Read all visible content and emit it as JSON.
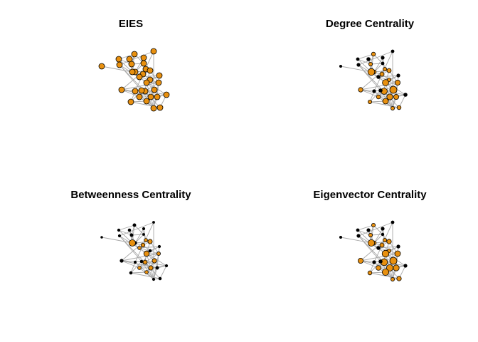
{
  "colors": {
    "node_fill": "#E8900F",
    "node_stroke": "#000000",
    "edge": "#A9A9A9",
    "title": "#000000"
  },
  "panels": [
    {
      "title": "EIES"
    },
    {
      "title": "Degree Centrality"
    },
    {
      "title": "Betweenness Centrality"
    },
    {
      "title": "Eigenvector Centrality"
    }
  ],
  "nodes": [
    {
      "id": 0,
      "node_size": {
        "eies": 1.0,
        "degree": 0.15,
        "betweenness": 0.1,
        "eigenvector": 0.15
      }
    },
    {
      "id": 1,
      "node_size": {
        "eies": 1.0,
        "degree": 0.25,
        "betweenness": 0.2,
        "eigenvector": 0.25
      }
    },
    {
      "id": 2,
      "node_size": {
        "eies": 1.0,
        "degree": 0.35,
        "betweenness": 0.25,
        "eigenvector": 0.3
      }
    },
    {
      "id": 3,
      "node_size": {
        "eies": 1.0,
        "degree": 0.45,
        "betweenness": 0.3,
        "eigenvector": 0.4
      }
    },
    {
      "id": 4,
      "node_size": {
        "eies": 1.0,
        "degree": 0.3,
        "betweenness": 0.2,
        "eigenvector": 0.3
      }
    },
    {
      "id": 5,
      "node_size": {
        "eies": 1.0,
        "degree": 0.4,
        "betweenness": 0.3,
        "eigenvector": 0.4
      }
    },
    {
      "id": 6,
      "node_size": {
        "eies": 1.0,
        "degree": 0.25,
        "betweenness": 0.15,
        "eigenvector": 0.2
      }
    },
    {
      "id": 7,
      "node_size": {
        "eies": 1.0,
        "degree": 0.45,
        "betweenness": 0.35,
        "eigenvector": 0.45
      }
    },
    {
      "id": 8,
      "node_size": {
        "eies": 1.0,
        "degree": 0.95,
        "betweenness": 1.0,
        "eigenvector": 0.9
      }
    },
    {
      "id": 9,
      "node_size": {
        "eies": 1.0,
        "degree": 0.4,
        "betweenness": 0.4,
        "eigenvector": 0.4
      }
    },
    {
      "id": 10,
      "node_size": {
        "eies": 1.0,
        "degree": 0.5,
        "betweenness": 0.5,
        "eigenvector": 0.5
      }
    },
    {
      "id": 11,
      "node_size": {
        "eies": 1.0,
        "degree": 0.5,
        "betweenness": 0.6,
        "eigenvector": 0.55
      }
    },
    {
      "id": 12,
      "node_size": {
        "eies": 1.0,
        "degree": 0.3,
        "betweenness": 0.2,
        "eigenvector": 0.3
      }
    },
    {
      "id": 13,
      "node_size": {
        "eies": 1.0,
        "degree": 0.35,
        "betweenness": 0.4,
        "eigenvector": 0.35
      }
    },
    {
      "id": 14,
      "node_size": {
        "eies": 1.0,
        "degree": 0.4,
        "betweenness": 0.25,
        "eigenvector": 0.4
      }
    },
    {
      "id": 15,
      "node_size": {
        "eies": 1.0,
        "degree": 0.85,
        "betweenness": 0.8,
        "eigenvector": 0.95
      }
    },
    {
      "id": 16,
      "node_size": {
        "eies": 1.0,
        "degree": 0.65,
        "betweenness": 0.45,
        "eigenvector": 0.75
      }
    },
    {
      "id": 17,
      "node_size": {
        "eies": 1.0,
        "degree": 0.55,
        "betweenness": 0.35,
        "eigenvector": 0.65
      }
    },
    {
      "id": 18,
      "node_size": {
        "eies": 1.0,
        "degree": 1.0,
        "betweenness": 0.6,
        "eigenvector": 1.0
      }
    },
    {
      "id": 19,
      "node_size": {
        "eies": 1.0,
        "degree": 0.85,
        "betweenness": 0.55,
        "eigenvector": 0.95
      }
    },
    {
      "id": 20,
      "node_size": {
        "eies": 1.0,
        "degree": 0.45,
        "betweenness": 0.4,
        "eigenvector": 0.6
      }
    },
    {
      "id": 21,
      "node_size": {
        "eies": 1.0,
        "degree": 0.8,
        "betweenness": 0.6,
        "eigenvector": 0.9
      }
    },
    {
      "id": 22,
      "node_size": {
        "eies": 1.0,
        "degree": 0.65,
        "betweenness": 0.3,
        "eigenvector": 0.8
      }
    },
    {
      "id": 23,
      "node_size": {
        "eies": 1.0,
        "degree": 0.75,
        "betweenness": 0.4,
        "eigenvector": 0.9
      }
    },
    {
      "id": 24,
      "node_size": {
        "eies": 1.0,
        "degree": 0.4,
        "betweenness": 0.2,
        "eigenvector": 0.4
      }
    },
    {
      "id": 25,
      "node_size": {
        "eies": 1.0,
        "degree": 0.45,
        "betweenness": 0.25,
        "eigenvector": 0.55
      }
    },
    {
      "id": 26,
      "node_size": {
        "eies": 1.0,
        "degree": 0.35,
        "betweenness": 0.2,
        "eigenvector": 0.3
      }
    },
    {
      "id": 27,
      "node_size": {
        "eies": 1.0,
        "degree": 0.35,
        "betweenness": 0.25,
        "eigenvector": 0.35
      }
    },
    {
      "id": 28,
      "node_size": {
        "eies": 1.0,
        "degree": 0.4,
        "betweenness": 0.25,
        "eigenvector": 0.45
      }
    },
    {
      "id": 29,
      "node_size": {
        "eies": 1.0,
        "degree": 0.3,
        "betweenness": 0.2,
        "eigenvector": 0.3
      }
    },
    {
      "id": 30,
      "node_size": {
        "eies": 1.0,
        "degree": 0.25,
        "betweenness": 0.15,
        "eigenvector": 0.25
      }
    },
    {
      "id": 31,
      "node_size": {
        "eies": 1.0,
        "degree": 0.3,
        "betweenness": 0.2,
        "eigenvector": 0.3
      }
    }
  ],
  "edges": [
    [
      0,
      8
    ],
    [
      1,
      8
    ],
    [
      1,
      3
    ],
    [
      3,
      5
    ],
    [
      2,
      5
    ],
    [
      3,
      6
    ],
    [
      5,
      6
    ],
    [
      4,
      6
    ],
    [
      4,
      9
    ],
    [
      6,
      9
    ],
    [
      5,
      8
    ],
    [
      2,
      7
    ],
    [
      7,
      8
    ],
    [
      8,
      10
    ],
    [
      7,
      11
    ],
    [
      9,
      11
    ],
    [
      10,
      11
    ],
    [
      10,
      14
    ],
    [
      11,
      15
    ],
    [
      12,
      15
    ],
    [
      12,
      16
    ],
    [
      13,
      16
    ],
    [
      14,
      15
    ],
    [
      15,
      16
    ],
    [
      15,
      18
    ],
    [
      16,
      19
    ],
    [
      17,
      19
    ],
    [
      18,
      19
    ],
    [
      18,
      20
    ],
    [
      18,
      21
    ],
    [
      19,
      21
    ],
    [
      20,
      22
    ],
    [
      21,
      23
    ],
    [
      20,
      24
    ],
    [
      22,
      24
    ],
    [
      23,
      24
    ],
    [
      24,
      25
    ],
    [
      25,
      26
    ],
    [
      26,
      27
    ],
    [
      27,
      28
    ],
    [
      28,
      29
    ],
    [
      29,
      30
    ],
    [
      30,
      31
    ],
    [
      26,
      31
    ],
    [
      27,
      31
    ],
    [
      25,
      28
    ],
    [
      22,
      26
    ],
    [
      17,
      22
    ],
    [
      17,
      20
    ],
    [
      18,
      23
    ],
    [
      21,
      24
    ],
    [
      8,
      13
    ],
    [
      10,
      13
    ],
    [
      9,
      10
    ],
    [
      4,
      7
    ],
    [
      2,
      8
    ],
    [
      1,
      5
    ],
    [
      3,
      8
    ],
    [
      6,
      7
    ],
    [
      12,
      14
    ],
    [
      15,
      19
    ],
    [
      16,
      17
    ],
    [
      19,
      24
    ],
    [
      19,
      20
    ],
    [
      15,
      21
    ],
    [
      8,
      15
    ],
    [
      11,
      16
    ],
    [
      13,
      12
    ],
    [
      23,
      28
    ],
    [
      24,
      27
    ],
    [
      21,
      26
    ],
    [
      29,
      23
    ],
    [
      30,
      24
    ],
    [
      31,
      25
    ],
    [
      9,
      17
    ],
    [
      14,
      20
    ],
    [
      12,
      22
    ],
    [
      16,
      24
    ]
  ]
}
